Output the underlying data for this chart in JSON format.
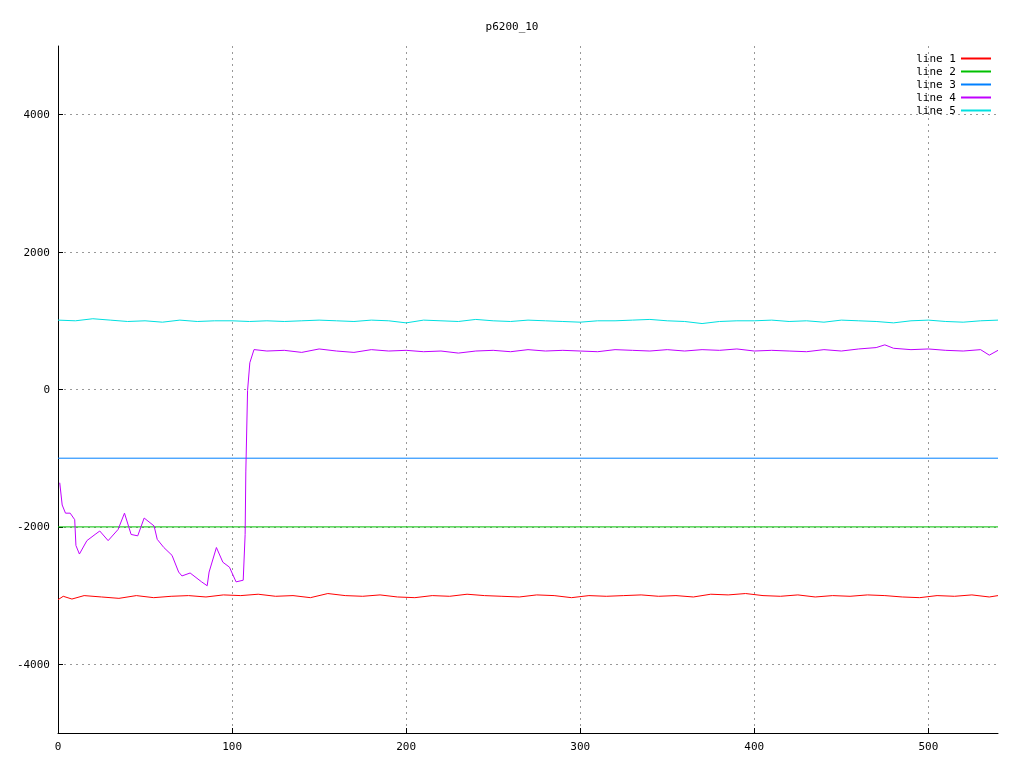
{
  "chart_data": {
    "type": "line",
    "title": "p6200_10",
    "xlim": [
      0,
      540
    ],
    "ylim": [
      -5000,
      5000
    ],
    "xticks": [
      0,
      100,
      200,
      300,
      400,
      500
    ],
    "yticks": [
      -4000,
      -2000,
      0,
      2000,
      4000
    ],
    "grid": true,
    "legend": "top right",
    "line_style": "solid",
    "marker": "none",
    "series": [
      {
        "name": "line 1",
        "color": "#ff0000",
        "x": [
          0,
          3,
          8,
          15,
          25,
          35,
          45,
          55,
          65,
          75,
          85,
          95,
          105,
          115,
          125,
          135,
          145,
          155,
          165,
          175,
          185,
          195,
          205,
          215,
          225,
          235,
          245,
          255,
          265,
          275,
          285,
          295,
          305,
          315,
          325,
          335,
          345,
          355,
          365,
          375,
          385,
          395,
          405,
          415,
          425,
          435,
          445,
          455,
          465,
          475,
          485,
          495,
          505,
          515,
          525,
          535,
          540
        ],
        "values": [
          -3060,
          -3010,
          -3050,
          -3000,
          -3020,
          -3040,
          -3000,
          -3030,
          -3010,
          -3000,
          -3020,
          -2990,
          -3000,
          -2980,
          -3010,
          -3000,
          -3030,
          -2970,
          -3000,
          -3010,
          -2990,
          -3020,
          -3030,
          -3000,
          -3010,
          -2980,
          -3000,
          -3010,
          -3020,
          -2990,
          -3000,
          -3030,
          -3000,
          -3010,
          -3000,
          -2990,
          -3010,
          -3000,
          -3020,
          -2980,
          -2990,
          -2970,
          -3000,
          -3010,
          -2990,
          -3020,
          -3000,
          -3010,
          -2990,
          -3000,
          -3020,
          -3030,
          -3000,
          -3010,
          -2990,
          -3020,
          -3000
        ]
      },
      {
        "name": "line 2",
        "color": "#00c000",
        "x": [
          0,
          540
        ],
        "values": [
          -2000,
          -2000
        ]
      },
      {
        "name": "line 3",
        "color": "#0080ff",
        "x": [
          0,
          540
        ],
        "values": [
          -1000,
          -1000
        ]
      },
      {
        "name": "line 4",
        "color": "#c000ff",
        "x": [
          1,
          2.4,
          4.3,
          7,
          9.6,
          10.3,
          12.3,
          16.6,
          21.3,
          24,
          28.8,
          34.5,
          38.2,
          42,
          45.8,
          49.5,
          55.2,
          57,
          60.8,
          65.5,
          69.3,
          71.2,
          75.9,
          82.5,
          85.7,
          86.8,
          91,
          94.7,
          98.5,
          102.3,
          106.4,
          107.5,
          107.9,
          108.9,
          110.2,
          112.6,
          120,
          130,
          140,
          150,
          160,
          170,
          180,
          190,
          200,
          210,
          220,
          230,
          240,
          250,
          260,
          270,
          280,
          290,
          300,
          310,
          320,
          330,
          340,
          350,
          360,
          370,
          380,
          390,
          400,
          410,
          420,
          430,
          440,
          450,
          460,
          470,
          475,
          480,
          490,
          500,
          510,
          520,
          530,
          535,
          540
        ],
        "values": [
          -1357,
          -1681,
          -1800,
          -1800,
          -1895,
          -2271,
          -2395,
          -2200,
          -2110,
          -2060,
          -2200,
          -2038,
          -1800,
          -2110,
          -2130,
          -1871,
          -1986,
          -2181,
          -2300,
          -2414,
          -2657,
          -2714,
          -2671,
          -2800,
          -2857,
          -2657,
          -2300,
          -2514,
          -2586,
          -2800,
          -2776,
          -2110,
          -1200,
          -14,
          390,
          581,
          560,
          570,
          540,
          590,
          560,
          540,
          580,
          560,
          570,
          550,
          560,
          530,
          560,
          570,
          550,
          580,
          560,
          570,
          560,
          550,
          580,
          570,
          560,
          580,
          560,
          580,
          570,
          590,
          560,
          570,
          560,
          550,
          580,
          560,
          590,
          610,
          650,
          600,
          580,
          590,
          570,
          560,
          580,
          500,
          570
        ]
      },
      {
        "name": "line 5",
        "color": "#00e0e0",
        "x": [
          0,
          10,
          20,
          30,
          40,
          50,
          60,
          70,
          80,
          90,
          100,
          110,
          120,
          130,
          140,
          150,
          160,
          170,
          180,
          190,
          200,
          210,
          220,
          230,
          240,
          250,
          260,
          270,
          280,
          290,
          300,
          310,
          320,
          330,
          340,
          350,
          360,
          370,
          380,
          390,
          400,
          410,
          420,
          430,
          440,
          450,
          460,
          470,
          480,
          490,
          500,
          510,
          520,
          530,
          540
        ],
        "values": [
          1010,
          1000,
          1030,
          1010,
          990,
          1000,
          980,
          1010,
          990,
          1000,
          1000,
          990,
          1000,
          990,
          1000,
          1010,
          1000,
          990,
          1010,
          1000,
          970,
          1010,
          1000,
          990,
          1020,
          1000,
          990,
          1010,
          1000,
          990,
          980,
          1000,
          1000,
          1010,
          1020,
          1000,
          990,
          960,
          990,
          1000,
          1000,
          1010,
          990,
          1000,
          980,
          1010,
          1000,
          990,
          970,
          1000,
          1010,
          990,
          980,
          1000,
          1010
        ]
      }
    ]
  }
}
